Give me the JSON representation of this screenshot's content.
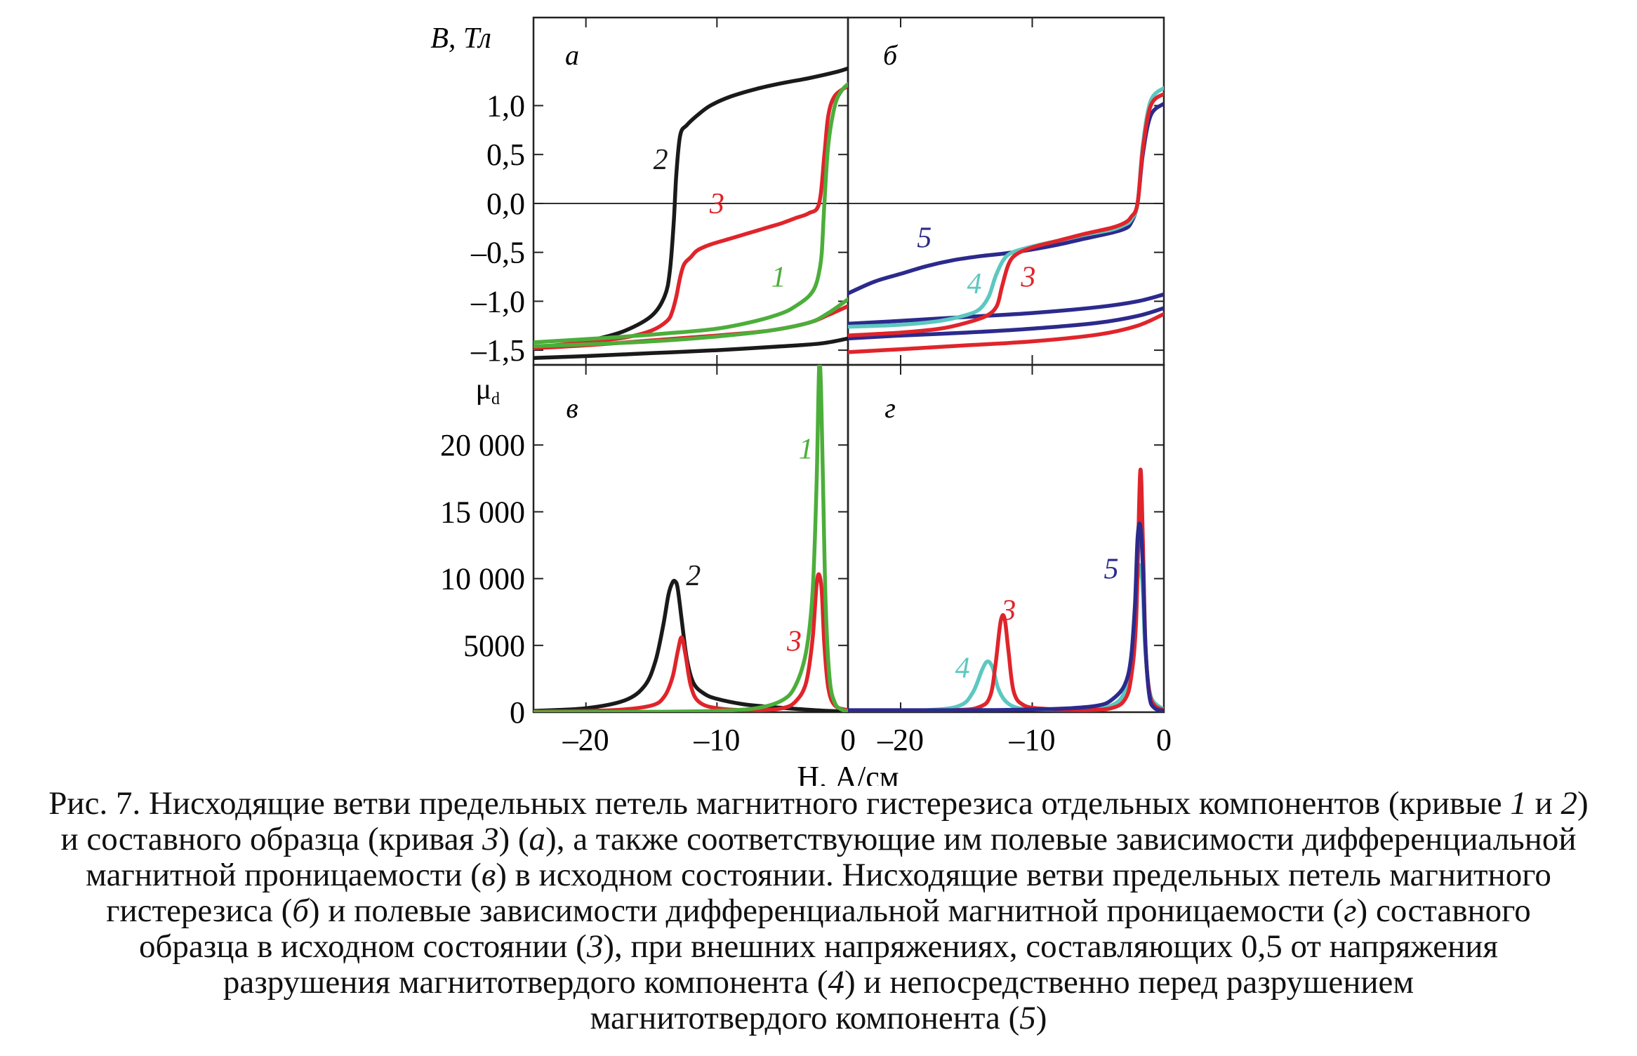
{
  "figure": {
    "y_label_top": "B, Тл",
    "y_label_bottom": "μ",
    "y_label_bottom_sub": "d",
    "x_label": "H, А/см",
    "colors": {
      "c1": "#4cae3a",
      "c2": "#1a1a1a",
      "c3": "#e0242b",
      "c4": "#5cc8c0",
      "c5": "#2c2a8c"
    }
  },
  "caption": [
    [
      "Рис. 7. Нисходящие ветви предельных петель магнитного гистерезиса отдельных компонентов (кривые ",
      {
        "i": "1"
      },
      " и ",
      {
        "i": "2"
      },
      ")"
    ],
    [
      "и составного образца (кривая ",
      {
        "i": "3"
      },
      ") (",
      {
        "i": "а"
      },
      "), а также соответствующие им полевые зависимости дифференциальной"
    ],
    [
      "магнитной проницаемости (",
      {
        "i": "в"
      },
      ") в исходном состоянии. Нисходящие ветви предельных петель магнитного"
    ],
    [
      "гистерезиса (",
      {
        "i": "б"
      },
      ") и полевые зависимости дифференциальной магнитной проницаемости (",
      {
        "i": "г"
      },
      ") составного"
    ],
    [
      "образца в исходном состоянии (",
      {
        "i": "3"
      },
      "), при внешних напряжениях, составляющих 0,5 от напряжения"
    ],
    [
      "разрушения магнитотвердого компонента (",
      {
        "i": "4"
      },
      ") и непосредственно перед разрушением"
    ],
    [
      "магнитотвердого компонента (",
      {
        "i": "5"
      },
      ")"
    ]
  ],
  "chart_data": [
    {
      "panel": "а",
      "type": "line",
      "xlim": [
        -24,
        0
      ],
      "ylim": [
        -1.65,
        1.9
      ],
      "yticks": [
        1.0,
        0.5,
        0.0,
        -0.5,
        -1.0,
        -1.5
      ],
      "ytick_labels": [
        "1,0",
        "0,5",
        "0,0",
        "–0,5",
        "–1,0",
        "–1,5"
      ],
      "zero_line": true,
      "series": [
        {
          "name": "2",
          "color": "#1a1a1a",
          "labelAt": [
            -14.3,
            0.35
          ],
          "x": [
            0,
            -1,
            -3,
            -5,
            -7,
            -9,
            -10.5,
            -11.5,
            -12.3,
            -12.8,
            -13.1,
            -13.3,
            -13.6,
            -14.0,
            -15,
            -17,
            -19,
            -21,
            -24
          ],
          "y": [
            1.38,
            1.34,
            1.28,
            1.23,
            1.17,
            1.09,
            1.0,
            0.9,
            0.8,
            0.7,
            0.3,
            -0.2,
            -0.7,
            -0.95,
            -1.15,
            -1.3,
            -1.38,
            -1.43,
            -1.48
          ]
        },
        {
          "name": "2",
          "color": "#1a1a1a",
          "x": [
            -24,
            -20,
            -15,
            -10,
            -5,
            -2,
            0
          ],
          "y": [
            -1.58,
            -1.56,
            -1.53,
            -1.5,
            -1.46,
            -1.43,
            -1.38
          ]
        },
        {
          "name": "3",
          "color": "#e0242b",
          "labelAt": [
            -10.0,
            -0.1
          ],
          "x": [
            0,
            -1,
            -1.5,
            -1.8,
            -2.2,
            -3,
            -4,
            -5,
            -6,
            -7.5,
            -9,
            -10.5,
            -11.5,
            -12,
            -12.5,
            -12.8,
            -13.1,
            -13.4,
            -13.8,
            -15,
            -17,
            -20,
            -24
          ],
          "y": [
            1.2,
            1.1,
            0.9,
            0.5,
            0.0,
            -0.1,
            -0.15,
            -0.2,
            -0.24,
            -0.3,
            -0.36,
            -0.42,
            -0.48,
            -0.55,
            -0.62,
            -0.75,
            -0.95,
            -1.1,
            -1.2,
            -1.3,
            -1.37,
            -1.42,
            -1.47
          ]
        },
        {
          "name": "3",
          "color": "#e0242b",
          "x": [
            -24,
            -20,
            -15,
            -10,
            -6,
            -3,
            -1.5,
            0
          ],
          "y": [
            -1.48,
            -1.45,
            -1.4,
            -1.35,
            -1.3,
            -1.22,
            -1.14,
            -1.05
          ]
        },
        {
          "name": "1",
          "color": "#4cae3a",
          "labelAt": [
            -5.3,
            -0.85
          ],
          "x": [
            0,
            -0.5,
            -1,
            -1.5,
            -1.8,
            -2.0,
            -2.2,
            -2.5,
            -3.0,
            -4.0,
            -5,
            -7,
            -10,
            -14,
            -18,
            -24
          ],
          "y": [
            1.22,
            1.15,
            1.0,
            0.6,
            0.0,
            -0.5,
            -0.7,
            -0.85,
            -0.95,
            -1.05,
            -1.12,
            -1.2,
            -1.28,
            -1.33,
            -1.37,
            -1.42
          ]
        },
        {
          "name": "1",
          "color": "#4cae3a",
          "x": [
            -24,
            -20,
            -15,
            -10,
            -6,
            -3,
            -1.5,
            0
          ],
          "y": [
            -1.46,
            -1.44,
            -1.41,
            -1.36,
            -1.3,
            -1.22,
            -1.12,
            -0.98
          ]
        }
      ]
    },
    {
      "panel": "б",
      "type": "line",
      "xlim": [
        -24,
        0
      ],
      "ylim": [
        -1.65,
        1.9
      ],
      "zero_line": true,
      "series": [
        {
          "name": "5",
          "color": "#2c2a8c",
          "labelAt": [
            -18.2,
            -0.45
          ],
          "x": [
            0,
            -1,
            -1.6,
            -2.0,
            -2.5,
            -3,
            -4,
            -6,
            -8,
            -10,
            -12,
            -14,
            -16,
            -18,
            -20,
            -22,
            -24
          ],
          "y": [
            1.02,
            0.9,
            0.5,
            0.0,
            -0.2,
            -0.26,
            -0.3,
            -0.36,
            -0.42,
            -0.47,
            -0.51,
            -0.54,
            -0.58,
            -0.64,
            -0.72,
            -0.8,
            -0.92
          ]
        },
        {
          "name": "5",
          "color": "#2c2a8c",
          "x": [
            -24,
            -20,
            -15,
            -10,
            -5,
            -2,
            0
          ],
          "y": [
            -1.23,
            -1.2,
            -1.16,
            -1.12,
            -1.06,
            -1.0,
            -0.93
          ]
        },
        {
          "name": "5",
          "color": "#2c2a8c",
          "x": [
            -24,
            -20,
            -15,
            -10,
            -5,
            -2,
            0
          ],
          "y": [
            -1.38,
            -1.35,
            -1.32,
            -1.28,
            -1.22,
            -1.15,
            -1.07
          ]
        },
        {
          "name": "4",
          "color": "#5cc8c0",
          "labelAt": [
            -14.4,
            -0.92
          ],
          "x": [
            0,
            -1,
            -1.6,
            -2.0,
            -2.5,
            -3,
            -4,
            -6,
            -8,
            -10,
            -11.5,
            -12.2,
            -12.8,
            -13.3,
            -14,
            -15,
            -17,
            -20,
            -24
          ],
          "y": [
            1.18,
            1.05,
            0.6,
            0.0,
            -0.17,
            -0.22,
            -0.27,
            -0.32,
            -0.38,
            -0.44,
            -0.5,
            -0.58,
            -0.75,
            -0.95,
            -1.08,
            -1.14,
            -1.2,
            -1.24,
            -1.26
          ]
        },
        {
          "name": "3",
          "color": "#e0242b",
          "labelAt": [
            -10.3,
            -0.85
          ],
          "x": [
            0,
            -1,
            -1.6,
            -2.0,
            -2.5,
            -3,
            -4,
            -6,
            -8,
            -10,
            -11.2,
            -11.8,
            -12.3,
            -12.7,
            -13.5,
            -15,
            -17,
            -20,
            -24
          ],
          "y": [
            1.12,
            1.0,
            0.55,
            0.0,
            -0.14,
            -0.2,
            -0.25,
            -0.31,
            -0.38,
            -0.45,
            -0.52,
            -0.62,
            -0.85,
            -1.05,
            -1.15,
            -1.22,
            -1.28,
            -1.32,
            -1.35
          ]
        },
        {
          "name": "3",
          "color": "#e0242b",
          "x": [
            -24,
            -20,
            -15,
            -10,
            -5,
            -2,
            0
          ],
          "y": [
            -1.52,
            -1.49,
            -1.45,
            -1.41,
            -1.34,
            -1.25,
            -1.13
          ]
        }
      ]
    },
    {
      "panel": "в",
      "type": "line",
      "xlim": [
        -24,
        0
      ],
      "ylim": [
        0,
        26000
      ],
      "yticks": [
        20000,
        15000,
        10000,
        5000,
        0
      ],
      "ytick_labels": [
        "20 000",
        "15 000",
        "10 000",
        "5000",
        "0"
      ],
      "xticks": [
        -20,
        -10,
        0
      ],
      "xtick_labels": [
        "–20",
        "–10",
        "0"
      ],
      "series": [
        {
          "name": "2",
          "color": "#1a1a1a",
          "labelAt": [
            -11.8,
            9500
          ],
          "x": [
            -24,
            -20,
            -17,
            -15.5,
            -14.7,
            -14.1,
            -13.7,
            -13.4,
            -13.2,
            -13.0,
            -12.7,
            -12.3,
            -11.8,
            -11.0,
            -10.0,
            -8,
            -6,
            -4,
            -2,
            0
          ],
          "y": [
            100,
            300,
            900,
            2000,
            3800,
            6500,
            8800,
            9700,
            9800,
            9300,
            7000,
            4000,
            2200,
            1400,
            1000,
            600,
            400,
            250,
            120,
            60
          ]
        },
        {
          "name": "3",
          "color": "#e0242b",
          "labelAt": [
            -4.1,
            4600
          ],
          "x": [
            -24,
            -18,
            -15,
            -14,
            -13.4,
            -13.0,
            -12.7,
            -12.4,
            -12.0,
            -11.4,
            -10,
            -7,
            -5,
            -4,
            -3.2,
            -2.7,
            -2.4,
            -2.2,
            -2.0,
            -1.8,
            -1.5,
            -1.0,
            0
          ],
          "y": [
            50,
            150,
            500,
            1200,
            2600,
            4500,
            5600,
            4300,
            2000,
            800,
            300,
            150,
            300,
            800,
            2200,
            5500,
            9500,
            10300,
            9000,
            5000,
            1800,
            500,
            150
          ]
        },
        {
          "name": "1",
          "color": "#4cae3a",
          "labelAt": [
            -3.2,
            19000
          ],
          "x": [
            -24,
            -15,
            -10,
            -7,
            -5,
            -4,
            -3.2,
            -2.7,
            -2.4,
            -2.2,
            -2.05,
            -1.9,
            -1.7,
            -1.4,
            -1.0,
            -0.5,
            0
          ],
          "y": [
            0,
            30,
            100,
            300,
            900,
            2000,
            4500,
            9000,
            17000,
            25800,
            24000,
            17000,
            8000,
            2500,
            700,
            200,
            80
          ]
        }
      ]
    },
    {
      "panel": "г",
      "type": "line",
      "xlim": [
        -24,
        0
      ],
      "ylim": [
        0,
        26000
      ],
      "xticks": [
        -20,
        -10,
        0
      ],
      "xtick_labels": [
        "–20",
        "–10",
        "0"
      ],
      "series": [
        {
          "name": "4",
          "color": "#5cc8c0",
          "labelAt": [
            -15.3,
            2600
          ],
          "x": [
            -24,
            -18,
            -15.5,
            -14.5,
            -13.8,
            -13.4,
            -13.0,
            -12.6,
            -12.0,
            -11,
            -9,
            -6,
            -4,
            -3,
            -2.5,
            -2.1,
            -1.8,
            -1.6,
            -1.4,
            -1.0,
            0
          ],
          "y": [
            50,
            150,
            500,
            1500,
            3200,
            3800,
            3300,
            1800,
            800,
            300,
            200,
            200,
            500,
            1500,
            4000,
            9000,
            11000,
            9000,
            4500,
            1200,
            200
          ]
        },
        {
          "name": "3",
          "color": "#e0242b",
          "labelAt": [
            -11.8,
            6900
          ],
          "x": [
            -24,
            -16,
            -14,
            -13.2,
            -12.8,
            -12.4,
            -12.1,
            -11.8,
            -11.4,
            -10.6,
            -9,
            -6,
            -4,
            -3,
            -2.5,
            -2.1,
            -1.8,
            -1.6,
            -1.4,
            -1.1,
            -0.7,
            0
          ],
          "y": [
            50,
            150,
            400,
            1200,
            3500,
            6800,
            7000,
            4500,
            1500,
            500,
            250,
            150,
            300,
            900,
            2500,
            7000,
            18000,
            13000,
            5000,
            1500,
            500,
            150
          ]
        },
        {
          "name": "5",
          "color": "#2c2a8c",
          "labelAt": [
            -4.0,
            10000
          ],
          "x": [
            -24,
            -15,
            -10,
            -7,
            -5,
            -4,
            -3,
            -2.5,
            -2.2,
            -2.0,
            -1.8,
            -1.6,
            -1.4,
            -1.1,
            -0.7,
            0
          ],
          "y": [
            150,
            150,
            200,
            300,
            500,
            900,
            2000,
            4000,
            8000,
            13000,
            14000,
            11000,
            5000,
            1200,
            300,
            100
          ]
        }
      ]
    }
  ]
}
